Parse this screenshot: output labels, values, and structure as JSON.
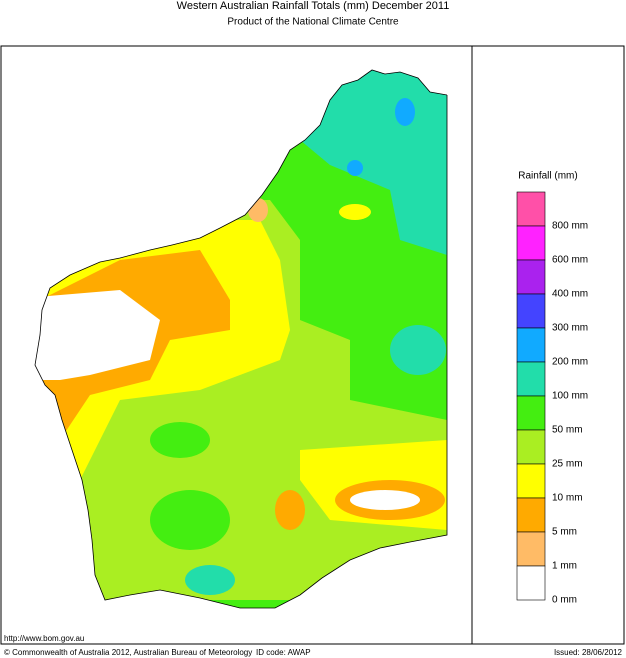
{
  "header": {
    "title": "Western Australian Rainfall Totals (mm) December 2011",
    "subtitle": "Product of the National Climate Centre"
  },
  "legend": {
    "title": "Rainfall (mm)",
    "colors": [
      "#ff50a8",
      "#ff22ff",
      "#aa22ee",
      "#4444ff",
      "#11aaff",
      "#22ddaa",
      "#44ee11",
      "#aaee22",
      "#ffff00",
      "#ffaa00",
      "#ffbb66",
      "#ffffff"
    ],
    "labels": [
      "800 mm",
      "600 mm",
      "400 mm",
      "300 mm",
      "200 mm",
      "100 mm",
      "50 mm",
      "25 mm",
      "10 mm",
      "5 mm",
      "1 mm",
      "0 mm"
    ]
  },
  "footer": {
    "url": "http://www.bom.gov.au",
    "copyright": "© Commonwealth of Australia 2012, Australian Bureau of Meteorology",
    "id": "ID code: AWAP",
    "issued": "Issued: 28/06/2012"
  }
}
